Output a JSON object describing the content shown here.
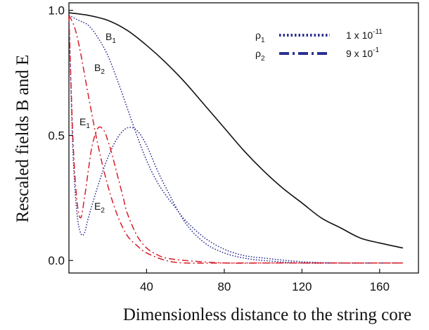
{
  "chart_data": {
    "type": "line",
    "xlabel": "Dimensionless distance to the string core",
    "ylabel": "Rescaled fields B and E",
    "xlim": [
      0,
      180
    ],
    "ylim": [
      -0.05,
      1.03
    ],
    "x_ticks": [
      40,
      80,
      120,
      160
    ],
    "x_tick_labels": [
      "40",
      "80",
      "120",
      "160"
    ],
    "y_ticks": [
      0.0,
      0.5,
      1.0
    ],
    "y_tick_labels": [
      "0.0",
      "0.5",
      "1.0"
    ],
    "grid": false,
    "legend": {
      "position": "top-right",
      "entries": [
        {
          "symbol": "ρ",
          "sub": "1",
          "value": "1 x 10",
          "exp": "-11",
          "style": "dotted",
          "color": "#2b2f8f"
        },
        {
          "symbol": "ρ",
          "sub": "2",
          "value": "9 x 10",
          "exp": "-1",
          "style": "dashdot",
          "color": "#2b2f8f"
        }
      ]
    },
    "annotations": [
      {
        "base": "B",
        "sub": "1"
      },
      {
        "base": "B",
        "sub": "2"
      },
      {
        "base": "E",
        "sub": "1"
      },
      {
        "base": "E",
        "sub": "2"
      }
    ],
    "series": [
      {
        "style": "solid",
        "color": "#111111",
        "x": [
          0,
          10,
          20,
          30,
          40,
          50,
          60,
          70,
          80,
          90,
          100,
          110,
          120,
          130,
          140,
          150,
          160,
          172
        ],
        "y": [
          0.99,
          0.98,
          0.96,
          0.92,
          0.86,
          0.79,
          0.71,
          0.62,
          0.53,
          0.44,
          0.36,
          0.29,
          0.23,
          0.17,
          0.13,
          0.09,
          0.07,
          0.05
        ]
      },
      {
        "style": "dotted",
        "color": "#2b2f8f",
        "x": [
          0,
          5,
          10,
          15,
          20,
          25,
          30,
          35,
          40,
          45,
          50,
          55,
          60,
          70,
          80,
          90,
          100,
          120,
          140,
          160,
          172
        ],
        "y": [
          0.98,
          0.96,
          0.94,
          0.89,
          0.82,
          0.72,
          0.61,
          0.5,
          0.4,
          0.32,
          0.26,
          0.21,
          0.16,
          0.09,
          0.045,
          0.02,
          0.01,
          -0.005,
          -0.01,
          -0.01,
          -0.01
        ]
      },
      {
        "style": "dotted",
        "color": "#2b2f8f",
        "x": [
          0,
          2,
          4,
          6,
          8,
          10,
          15,
          20,
          25,
          30,
          35,
          40,
          45,
          50,
          60,
          70,
          80,
          90,
          100,
          120,
          140,
          160,
          172
        ],
        "y": [
          0.98,
          0.45,
          0.2,
          0.11,
          0.11,
          0.17,
          0.3,
          0.41,
          0.49,
          0.53,
          0.52,
          0.46,
          0.37,
          0.29,
          0.15,
          0.07,
          0.03,
          0.01,
          0.0,
          -0.01,
          -0.01,
          -0.01,
          -0.01
        ]
      },
      {
        "style": "dashdot",
        "color": "#d61f2b",
        "x": [
          0,
          3,
          6,
          10,
          15,
          20,
          25,
          30,
          35,
          40,
          50,
          60,
          80,
          100,
          120,
          140,
          160,
          172
        ],
        "y": [
          0.98,
          0.93,
          0.83,
          0.66,
          0.46,
          0.3,
          0.18,
          0.1,
          0.06,
          0.03,
          0.0,
          -0.01,
          -0.01,
          -0.01,
          -0.01,
          -0.01,
          -0.01,
          -0.01
        ]
      },
      {
        "style": "dashdot",
        "color": "#d61f2b",
        "x": [
          0,
          2,
          4,
          6,
          8,
          10,
          12,
          15,
          18,
          20,
          22,
          25,
          28,
          30,
          35,
          40,
          45,
          50,
          60,
          80,
          100,
          120,
          140,
          160,
          172
        ],
        "y": [
          0.98,
          0.5,
          0.25,
          0.17,
          0.25,
          0.36,
          0.46,
          0.53,
          0.52,
          0.48,
          0.43,
          0.34,
          0.25,
          0.19,
          0.1,
          0.05,
          0.025,
          0.01,
          0.0,
          -0.01,
          -0.01,
          -0.01,
          -0.01,
          -0.01,
          -0.01
        ]
      }
    ]
  }
}
